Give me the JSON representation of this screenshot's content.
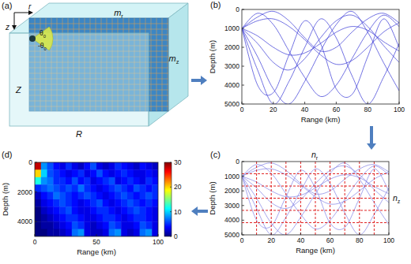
{
  "diagram": {
    "panel": "(a)",
    "axis_r": "r",
    "axis_z": "z",
    "angle_up": {
      "base": "θ",
      "sub": "0"
    },
    "angle_down": {
      "base": "-θ",
      "sub": "0"
    },
    "top_label": {
      "base": "m",
      "sub": "r"
    },
    "side_label": {
      "base": "m",
      "sub": "z"
    },
    "depth_label": "Z",
    "range_label": "R"
  },
  "chart_data": [
    {
      "panel": "(b)",
      "type": "line",
      "color": "#3535d6",
      "x_label": "Range (km)",
      "y_label": "Depth (m)",
      "xlim": [
        0,
        100
      ],
      "ylim": [
        0,
        5000
      ],
      "xticks": [
        0,
        20,
        40,
        60,
        80,
        100
      ],
      "yticks": [
        0,
        1000,
        2000,
        3000,
        4000,
        5000
      ],
      "x": [
        0,
        10,
        20,
        30,
        40,
        50,
        60,
        70,
        80,
        90,
        100
      ],
      "series": [
        {
          "values": [
            1000,
            400,
            100,
            600,
            1500,
            2200,
            2000,
            1200,
            500,
            200,
            700
          ]
        },
        {
          "values": [
            1000,
            1800,
            2800,
            3200,
            2600,
            1500,
            600,
            300,
            900,
            1900,
            2800
          ]
        },
        {
          "values": [
            1000,
            2500,
            4200,
            5000,
            3800,
            2200,
            800,
            100,
            1200,
            2800,
            4300
          ]
        },
        {
          "values": [
            1000,
            200,
            800,
            2200,
            3600,
            4600,
            4000,
            2600,
            1200,
            300,
            900
          ]
        },
        {
          "values": [
            1000,
            3200,
            5000,
            3800,
            2000,
            500,
            1500,
            3500,
            5000,
            3600,
            1800
          ]
        },
        {
          "values": [
            1000,
            1400,
            2000,
            2400,
            2300,
            1800,
            1200,
            900,
            1100,
            1700,
            2200
          ]
        },
        {
          "values": [
            1000,
            600,
            500,
            900,
            1600,
            2400,
            2900,
            2700,
            2000,
            1200,
            700
          ]
        },
        {
          "values": [
            1000,
            4000,
            4400,
            2400,
            600,
            1800,
            4200,
            4500,
            2500,
            500,
            2000
          ]
        }
      ]
    },
    {
      "panel": "(c)",
      "type": "line",
      "color": "#8080e4",
      "x_label": "Range (km)",
      "y_label": "Depth (m)",
      "top_label": {
        "base": "n",
        "sub": "r"
      },
      "side_label": {
        "base": "n",
        "sub": "z"
      },
      "xlim": [
        0,
        100
      ],
      "ylim": [
        0,
        5000
      ],
      "xticks": [
        0,
        20,
        40,
        60,
        80,
        100
      ],
      "yticks": [
        0,
        1000,
        2000,
        3000,
        4000,
        5000
      ],
      "grid_ranges": [
        10,
        20,
        30,
        40,
        50,
        60,
        70,
        80,
        90
      ],
      "grid_depths": [
        830,
        1670,
        2500,
        3330,
        4170
      ],
      "grid_color": "#e02020",
      "x": [
        0,
        10,
        20,
        30,
        40,
        50,
        60,
        70,
        80,
        90,
        100
      ],
      "series": [
        {
          "values": [
            1000,
            400,
            100,
            600,
            1500,
            2200,
            2000,
            1200,
            500,
            200,
            700
          ]
        },
        {
          "values": [
            1000,
            1800,
            2800,
            3200,
            2600,
            1500,
            600,
            300,
            900,
            1900,
            2800
          ]
        },
        {
          "values": [
            1000,
            2500,
            4200,
            5000,
            3800,
            2200,
            800,
            100,
            1200,
            2800,
            4300
          ]
        },
        {
          "values": [
            1000,
            200,
            800,
            2200,
            3600,
            4600,
            4000,
            2600,
            1200,
            300,
            900
          ]
        },
        {
          "values": [
            1000,
            3200,
            5000,
            3800,
            2000,
            500,
            1500,
            3500,
            5000,
            3600,
            1800
          ]
        },
        {
          "values": [
            1000,
            1400,
            2000,
            2400,
            2300,
            1800,
            1200,
            900,
            1100,
            1700,
            2200
          ]
        },
        {
          "values": [
            1000,
            600,
            500,
            900,
            1600,
            2400,
            2900,
            2700,
            2000,
            1200,
            700
          ]
        },
        {
          "values": [
            1000,
            4000,
            4400,
            2400,
            600,
            1800,
            4200,
            4500,
            2500,
            500,
            2000
          ]
        }
      ]
    },
    {
      "panel": "(d)",
      "type": "heatmap",
      "x_label": "Range (km)",
      "y_label": "Depth (m)",
      "xlim": [
        0,
        100
      ],
      "ylim": [
        0,
        5000
      ],
      "xticks": [
        0,
        50,
        100
      ],
      "yticks": [
        0,
        2000,
        4000
      ],
      "colorbar_range": [
        0,
        30
      ],
      "colorbar_ticks": [
        0,
        10,
        20,
        30
      ],
      "cells": [
        [
          28,
          8,
          6,
          4,
          3,
          5,
          3,
          2,
          4,
          6,
          3,
          2,
          3,
          5,
          4,
          3,
          2,
          4,
          3,
          2
        ],
        [
          20,
          10,
          6,
          5,
          4,
          3,
          4,
          5,
          3,
          4,
          6,
          4,
          3,
          4,
          5,
          4,
          3,
          3,
          4,
          3
        ],
        [
          12,
          8,
          7,
          5,
          5,
          4,
          6,
          4,
          5,
          3,
          4,
          5,
          6,
          3,
          4,
          5,
          4,
          3,
          5,
          4
        ],
        [
          5,
          6,
          7,
          6,
          5,
          6,
          5,
          7,
          5,
          4,
          3,
          4,
          5,
          6,
          5,
          4,
          6,
          5,
          4,
          5
        ],
        [
          2,
          4,
          5,
          7,
          6,
          5,
          4,
          5,
          6,
          5,
          4,
          3,
          4,
          5,
          6,
          5,
          4,
          5,
          6,
          5
        ],
        [
          1,
          3,
          4,
          5,
          6,
          5,
          4,
          3,
          4,
          5,
          6,
          4,
          3,
          4,
          5,
          6,
          5,
          4,
          5,
          4
        ],
        [
          0,
          2,
          3,
          4,
          5,
          6,
          4,
          3,
          3,
          4,
          5,
          5,
          4,
          3,
          4,
          5,
          6,
          5,
          4,
          3
        ],
        [
          0,
          1,
          2,
          3,
          4,
          5,
          5,
          4,
          3,
          3,
          4,
          5,
          5,
          4,
          3,
          4,
          5,
          5,
          4,
          3
        ],
        [
          0,
          1,
          1,
          2,
          3,
          4,
          6,
          5,
          3,
          2,
          3,
          4,
          6,
          5,
          3,
          3,
          4,
          6,
          5,
          3
        ],
        [
          0,
          0,
          1,
          1,
          2,
          3,
          7,
          8,
          3,
          2,
          2,
          3,
          7,
          8,
          3,
          2,
          3,
          7,
          8,
          3
        ]
      ]
    }
  ]
}
